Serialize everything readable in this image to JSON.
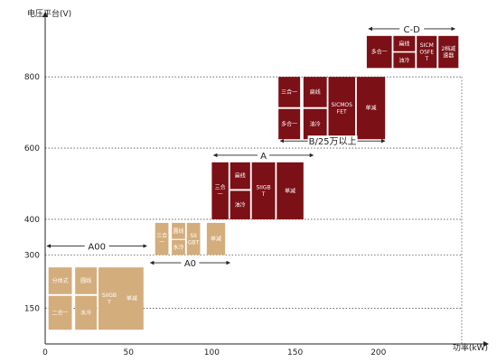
{
  "chart_data": {
    "type": "table",
    "title": "",
    "xlabel": "功率(kW)",
    "ylabel": "电压平台(V)",
    "xlim": [
      0,
      250
    ],
    "ylim": [
      50,
      950
    ],
    "x_ticks": [
      0,
      50,
      100,
      150,
      200
    ],
    "y_ticks": [
      150,
      300,
      400,
      600,
      800
    ],
    "colors": {
      "dark": "#7b1016",
      "light": "#d4ad7c",
      "grid": "#555555"
    },
    "segments": [
      {
        "label": "A00",
        "x_range": [
          0,
          62
        ],
        "y": 325
      },
      {
        "label": "A0",
        "x_range": [
          62,
          112
        ],
        "y": 278
      },
      {
        "label": "A",
        "x_range": [
          100,
          162
        ],
        "y": 580
      },
      {
        "label": "B/25万以上",
        "x_range": [
          140,
          205
        ],
        "y": 620
      },
      {
        "label": "C-D",
        "x_range": [
          193,
          247
        ],
        "y": 935
      }
    ],
    "groups": [
      {
        "segment": "A00",
        "color": "light",
        "blocks": [
          {
            "x0": 2,
            "x1": 16,
            "y0": 190,
            "y1": 265,
            "text": "分体式"
          },
          {
            "x0": 2,
            "x1": 16,
            "y0": 90,
            "y1": 185,
            "text": "二合一"
          },
          {
            "x0": 18,
            "x1": 31,
            "y0": 190,
            "y1": 265,
            "text": "圆线"
          },
          {
            "x0": 18,
            "x1": 31,
            "y0": 90,
            "y1": 185,
            "text": "水冷"
          },
          {
            "x0": 32,
            "x1": 45,
            "y0": 90,
            "y1": 265,
            "text": "SIIGBT"
          },
          {
            "x0": 45,
            "x1": 59,
            "y0": 90,
            "y1": 265,
            "text": "单减"
          }
        ]
      },
      {
        "segment": "A0",
        "color": "light",
        "blocks": [
          {
            "x0": 66,
            "x1": 74,
            "y0": 300,
            "y1": 390,
            "text": "三合一"
          },
          {
            "x0": 76,
            "x1": 84,
            "y0": 345,
            "y1": 390,
            "text": "圆线"
          },
          {
            "x0": 76,
            "x1": 84,
            "y0": 300,
            "y1": 342,
            "text": "水冷"
          },
          {
            "x0": 85,
            "x1": 93,
            "y0": 300,
            "y1": 390,
            "text": "SIIGBT"
          },
          {
            "x0": 97,
            "x1": 108,
            "y0": 300,
            "y1": 390,
            "text": "单减"
          }
        ]
      },
      {
        "segment": "A",
        "color": "dark",
        "blocks": [
          {
            "x0": 100,
            "x1": 110,
            "y0": 400,
            "y1": 560,
            "text": "三合一"
          },
          {
            "x0": 111,
            "x1": 123,
            "y0": 485,
            "y1": 560,
            "text": "扁线"
          },
          {
            "x0": 111,
            "x1": 123,
            "y0": 400,
            "y1": 480,
            "text": "油冷"
          },
          {
            "x0": 124,
            "x1": 138,
            "y0": 400,
            "y1": 560,
            "text": "SIIGBT"
          },
          {
            "x0": 139,
            "x1": 155,
            "y0": 400,
            "y1": 560,
            "text": "单减"
          }
        ]
      },
      {
        "segment": "B/25万以上",
        "color": "dark",
        "blocks": [
          {
            "x0": 140,
            "x1": 153,
            "y0": 715,
            "y1": 800,
            "text": "三合一"
          },
          {
            "x0": 140,
            "x1": 153,
            "y0": 625,
            "y1": 710,
            "text": "多合一"
          },
          {
            "x0": 155,
            "x1": 169,
            "y0": 715,
            "y1": 800,
            "text": "扁线"
          },
          {
            "x0": 155,
            "x1": 169,
            "y0": 625,
            "y1": 710,
            "text": "油冷"
          },
          {
            "x0": 170,
            "x1": 186,
            "y0": 625,
            "y1": 800,
            "text": "SICMOSFET"
          },
          {
            "x0": 187,
            "x1": 204,
            "y0": 625,
            "y1": 800,
            "text": "单减"
          }
        ]
      },
      {
        "segment": "C-D",
        "color": "dark",
        "blocks": [
          {
            "x0": 193,
            "x1": 208,
            "y0": 825,
            "y1": 915,
            "text": "多合一"
          },
          {
            "x0": 209,
            "x1": 222,
            "y0": 872,
            "y1": 915,
            "text": "扁线"
          },
          {
            "x0": 209,
            "x1": 222,
            "y0": 825,
            "y1": 868,
            "text": "油冷"
          },
          {
            "x0": 223,
            "x1": 235,
            "y0": 825,
            "y1": 915,
            "text": "SICMOSFET"
          },
          {
            "x0": 236,
            "x1": 248,
            "y0": 825,
            "y1": 915,
            "text": "2档减速器"
          }
        ]
      }
    ]
  }
}
